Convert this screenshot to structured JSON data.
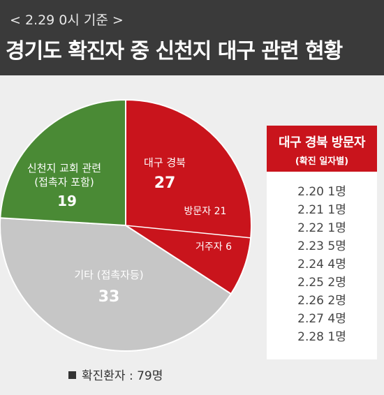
{
  "header": {
    "date_line": "< 2.29 0시 기준 >",
    "title": "경기도 확진자 중 신천지 대구 관련 현황"
  },
  "chart_data": [
    {
      "type": "pie",
      "total_label": "확진환자 : 79명",
      "slices": [
        {
          "label": "대구 경북",
          "value": 27,
          "color": "#c9141c",
          "sub": [
            {
              "label": "방문자",
              "value": 21
            },
            {
              "label": "거주자",
              "value": 6
            }
          ]
        },
        {
          "label": "기타 (접촉자등)",
          "value": 33,
          "color": "#c6c6c6"
        },
        {
          "label": "신천지 교회 관련\n(접촉자 포함)",
          "value": 19,
          "color": "#4a8a35"
        }
      ],
      "legend_position": "bottom"
    },
    {
      "type": "table",
      "title": "대구 경북 방문자",
      "subtitle": "(확진 일자별)",
      "rows": [
        {
          "date": "2.20",
          "count": "1명"
        },
        {
          "date": "2.21",
          "count": "1명"
        },
        {
          "date": "2.22",
          "count": "1명"
        },
        {
          "date": "2.23",
          "count": "5명"
        },
        {
          "date": "2.24",
          "count": "4명"
        },
        {
          "date": "2.25",
          "count": "2명"
        },
        {
          "date": "2.26",
          "count": "2명"
        },
        {
          "date": "2.27",
          "count": "4명"
        },
        {
          "date": "2.28",
          "count": "1명"
        }
      ]
    }
  ],
  "pie_text": {
    "daegu_label": "대구 경북",
    "daegu_value": "27",
    "visitor_label": "방문자 21",
    "resident_label": "거주자 6",
    "other_label": "기타 (접촉자등)",
    "other_value": "33",
    "church_label_1": "신천지 교회 관련",
    "church_label_2": "(접촉자 포함)",
    "church_value": "19"
  }
}
